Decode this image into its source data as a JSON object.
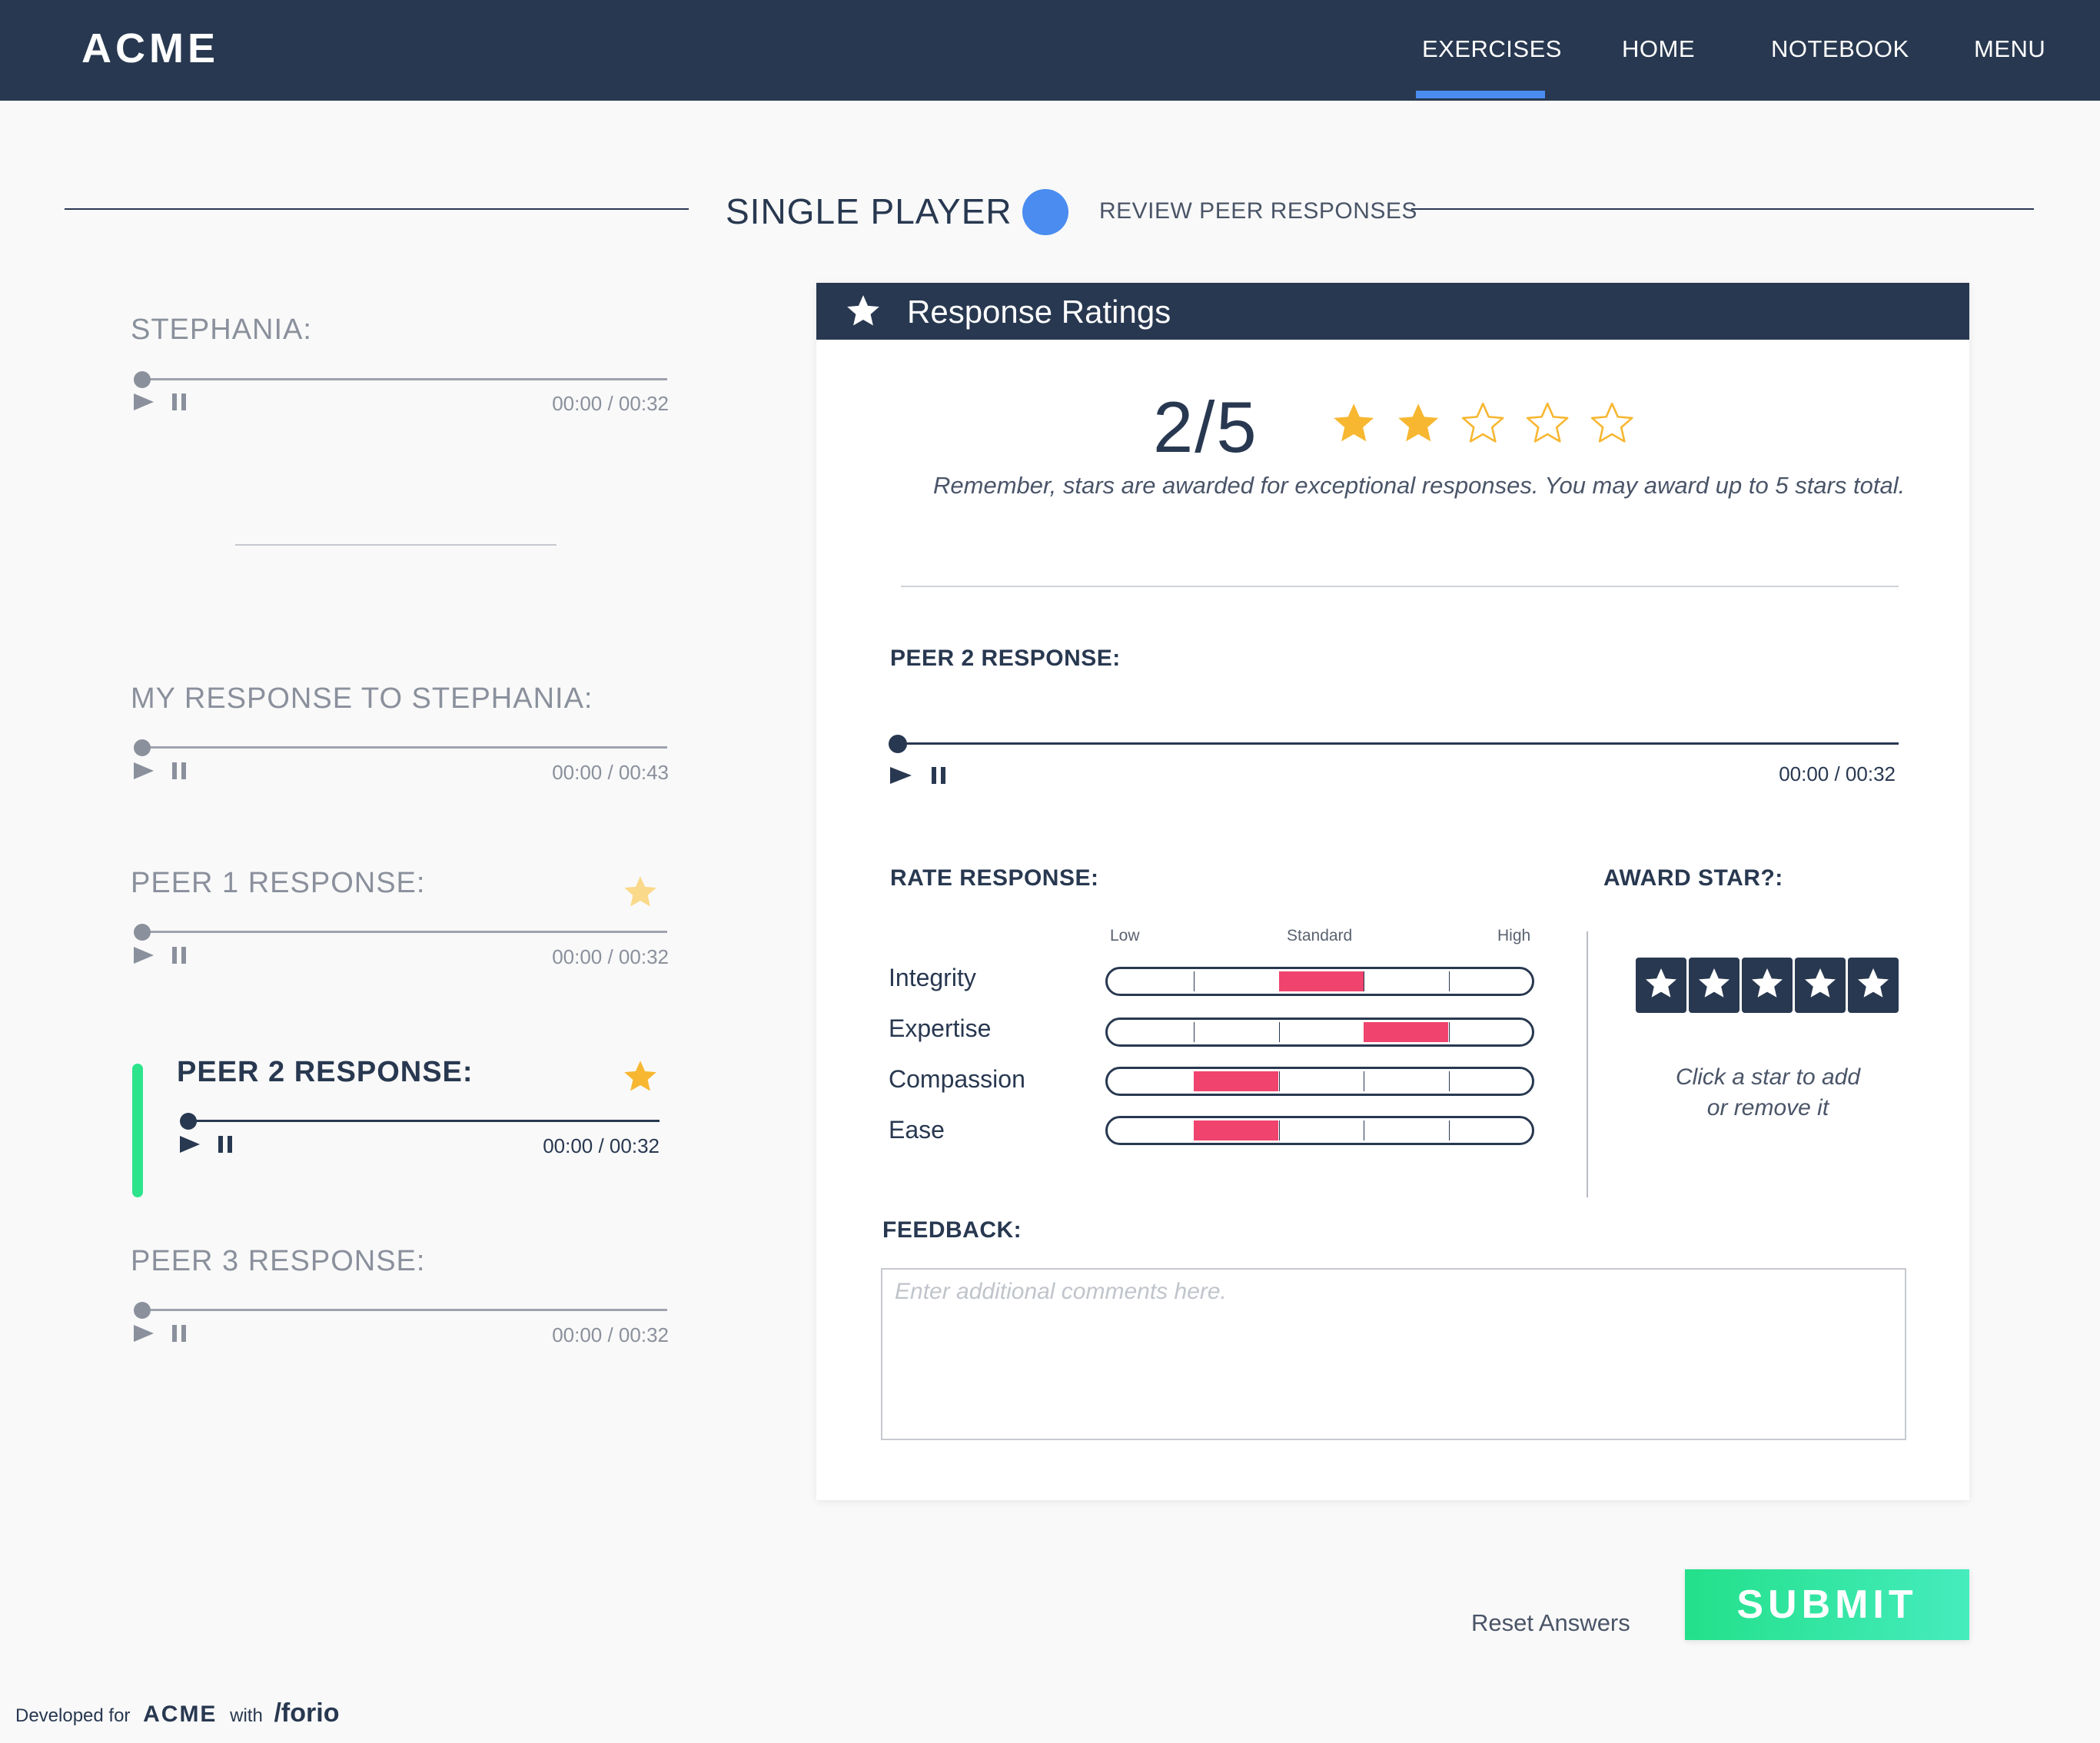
{
  "app": {
    "brand": "ACME",
    "nav": [
      "EXERCISES",
      "HOME",
      "NOTEBOOK",
      "MENU"
    ],
    "active_nav": "EXERCISES"
  },
  "mode": {
    "current": "SINGLE PLAYER",
    "next": "REVIEW PEER RESPONSES"
  },
  "tracks": [
    {
      "title": "STEPHANIA:",
      "time": "00:00 / 00:32",
      "starred": false,
      "active": false,
      "progress": 0
    },
    {
      "title": "MY RESPONSE TO STEPHANIA:",
      "time": "00:00 / 00:43",
      "starred": false,
      "active": false,
      "progress": 0
    },
    {
      "title": "PEER 1 RESPONSE:",
      "time": "00:00 / 00:32",
      "starred": true,
      "active": false,
      "progress": 0
    },
    {
      "title": "PEER 2 RESPONSE:",
      "time": "00:00 / 00:32",
      "starred": true,
      "active": true,
      "progress": 0
    },
    {
      "title": "PEER 3 RESPONSE:",
      "time": "00:00 / 00:32",
      "starred": false,
      "active": false,
      "progress": 0
    }
  ],
  "ratings": {
    "header": "Response Ratings",
    "score": "2/5",
    "stars_awarded": 2,
    "stars_total": 5,
    "note": "Remember, stars are awarded for exceptional responses. You may award up to 5 stars total.",
    "peer_title": "PEER 2 RESPONSE:",
    "peer_time": "00:00 / 00:32",
    "rate_label": "RATE RESPONSE:",
    "award_label": "AWARD STAR?:",
    "scale": {
      "low": "Low",
      "standard": "Standard",
      "high": "High"
    },
    "criteria": [
      {
        "name": "Integrity",
        "level": 3
      },
      {
        "name": "Expertise",
        "level": 4
      },
      {
        "name": "Compassion",
        "level": 2
      },
      {
        "name": "Ease",
        "level": 2
      }
    ],
    "award_note_1": "Click a star to add",
    "award_note_2": "or remove it",
    "feedback_label": "FEEDBACK:",
    "feedback_placeholder": "Enter additional comments here.",
    "feedback_value": ""
  },
  "actions": {
    "reset": "Reset Answers",
    "submit": "SUBMIT"
  },
  "footer": {
    "developed_for": "Developed for",
    "brand": "ACME",
    "with": "with",
    "partner": "/forio"
  },
  "colors": {
    "navy": "#283850",
    "accent_blue": "#4a8cf0",
    "star_gold": "#f7b731",
    "rating_pink": "#f0436d",
    "submit_green": "#23e08a",
    "active_green": "#2de48c"
  }
}
